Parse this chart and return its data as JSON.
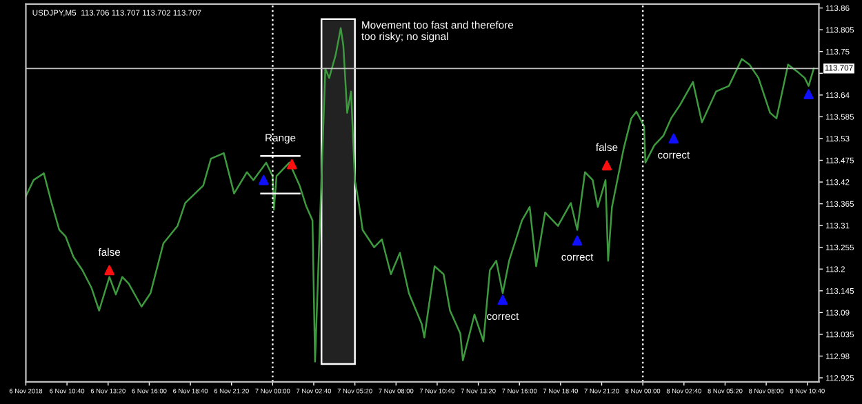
{
  "chart_data": {
    "type": "line",
    "title": "USDJPY,M5  113.706 113.707 113.702 113.707",
    "xlim": [
      "2018-11-06T08:00",
      "2018-11-08T11:25"
    ],
    "ylim": [
      112.915,
      113.87
    ],
    "xticks": [
      {
        "value": "2018-11-06T08:00",
        "label": "6 Nov 2018"
      },
      {
        "value": "2018-11-06T10:40",
        "label": "6 Nov 10:40"
      },
      {
        "value": "2018-11-06T13:20",
        "label": "6 Nov 13:20"
      },
      {
        "value": "2018-11-06T16:00",
        "label": "6 Nov 16:00"
      },
      {
        "value": "2018-11-06T18:40",
        "label": "6 Nov 18:40"
      },
      {
        "value": "2018-11-06T21:20",
        "label": "6 Nov 21:20"
      },
      {
        "value": "2018-11-07T00:00",
        "label": "7 Nov 00:00"
      },
      {
        "value": "2018-11-07T02:40",
        "label": "7 Nov 02:40"
      },
      {
        "value": "2018-11-07T05:20",
        "label": "7 Nov 05:20"
      },
      {
        "value": "2018-11-07T08:00",
        "label": "7 Nov 08:00"
      },
      {
        "value": "2018-11-07T10:40",
        "label": "7 Nov 10:40"
      },
      {
        "value": "2018-11-07T13:20",
        "label": "7 Nov 13:20"
      },
      {
        "value": "2018-11-07T16:00",
        "label": "7 Nov 16:00"
      },
      {
        "value": "2018-11-07T18:40",
        "label": "7 Nov 18:40"
      },
      {
        "value": "2018-11-07T21:20",
        "label": "7 Nov 21:20"
      },
      {
        "value": "2018-11-08T00:00",
        "label": "8 Nov 00:00"
      },
      {
        "value": "2018-11-08T02:40",
        "label": "8 Nov 02:40"
      },
      {
        "value": "2018-11-08T05:20",
        "label": "8 Nov 05:20"
      },
      {
        "value": "2018-11-08T08:00",
        "label": "8 Nov 08:00"
      },
      {
        "value": "2018-11-08T10:40",
        "label": "8 Nov 10:40"
      }
    ],
    "yticks": [
      112.925,
      112.98,
      113.035,
      113.09,
      113.145,
      113.2,
      113.255,
      113.31,
      113.365,
      113.42,
      113.475,
      113.53,
      113.585,
      113.64,
      {
        "value": 113.695,
        "label": null
      },
      113.75,
      113.805,
      113.86
    ],
    "grid": false,
    "legend": false,
    "series": [
      {
        "color": "#3e9a3e",
        "x": [
          "2018-11-06T08:00",
          "2018-11-06T08:30",
          "2018-11-06T09:10",
          "2018-11-06T09:40",
          "2018-11-06T10:10",
          "2018-11-06T10:35",
          "2018-11-06T11:05",
          "2018-11-06T11:40",
          "2018-11-06T12:15",
          "2018-11-06T12:45",
          "2018-11-06T13:25",
          "2018-11-06T13:50",
          "2018-11-06T14:15",
          "2018-11-06T14:40",
          "2018-11-06T15:30",
          "2018-11-06T16:05",
          "2018-11-06T16:55",
          "2018-11-06T17:50",
          "2018-11-06T18:20",
          "2018-11-06T19:30",
          "2018-11-06T20:00",
          "2018-11-06T20:50",
          "2018-11-06T21:30",
          "2018-11-06T22:20",
          "2018-11-06T22:45",
          "2018-11-06T23:35",
          "2018-11-07T00:00",
          "2018-11-07T00:05",
          "2018-11-07T00:15",
          "2018-11-07T01:05",
          "2018-11-07T01:45",
          "2018-11-07T02:10",
          "2018-11-07T02:35",
          "2018-11-07T02:45",
          "2018-11-07T03:25",
          "2018-11-07T03:40",
          "2018-11-07T04:05",
          "2018-11-07T04:25",
          "2018-11-07T04:35",
          "2018-11-07T04:50",
          "2018-11-07T05:05",
          "2018-11-07T05:20",
          "2018-11-07T05:35",
          "2018-11-07T05:50",
          "2018-11-07T06:35",
          "2018-11-07T07:05",
          "2018-11-07T07:40",
          "2018-11-07T08:15",
          "2018-11-07T08:50",
          "2018-11-07T09:40",
          "2018-11-07T09:50",
          "2018-11-07T10:30",
          "2018-11-07T11:05",
          "2018-11-07T11:30",
          "2018-11-07T12:10",
          "2018-11-07T12:20",
          "2018-11-07T13:05",
          "2018-11-07T13:40",
          "2018-11-07T14:05",
          "2018-11-07T14:30",
          "2018-11-07T14:55",
          "2018-11-07T15:20",
          "2018-11-07T16:10",
          "2018-11-07T16:40",
          "2018-11-07T17:05",
          "2018-11-07T17:40",
          "2018-11-07T18:30",
          "2018-11-07T19:20",
          "2018-11-07T19:45",
          "2018-11-07T20:15",
          "2018-11-07T20:45",
          "2018-11-07T21:05",
          "2018-11-07T21:35",
          "2018-11-07T21:45",
          "2018-11-07T22:00",
          "2018-11-07T22:45",
          "2018-11-07T23:15",
          "2018-11-07T23:35",
          "2018-11-08T00:05",
          "2018-11-08T00:10",
          "2018-11-08T00:45",
          "2018-11-08T01:20",
          "2018-11-08T01:50",
          "2018-11-08T02:25",
          "2018-11-08T03:15",
          "2018-11-08T03:50",
          "2018-11-08T04:45",
          "2018-11-08T05:35",
          "2018-11-08T06:25",
          "2018-11-08T06:55",
          "2018-11-08T07:30",
          "2018-11-08T08:15",
          "2018-11-08T08:40",
          "2018-11-08T09:25",
          "2018-11-08T10:05",
          "2018-11-08T10:30",
          "2018-11-08T10:45",
          "2018-11-08T11:05"
        ],
        "values": [
          113.384,
          113.425,
          113.442,
          113.367,
          113.299,
          113.282,
          113.231,
          113.197,
          113.153,
          113.095,
          113.18,
          113.136,
          113.18,
          113.163,
          113.105,
          113.139,
          113.265,
          113.309,
          113.367,
          113.411,
          113.479,
          113.493,
          113.391,
          113.445,
          113.425,
          113.469,
          113.435,
          113.35,
          113.435,
          113.469,
          113.411,
          113.36,
          113.323,
          112.966,
          113.707,
          113.683,
          113.741,
          113.809,
          113.765,
          113.595,
          113.649,
          113.425,
          113.367,
          113.299,
          113.255,
          113.275,
          113.187,
          113.241,
          113.139,
          113.061,
          113.027,
          113.207,
          113.187,
          113.095,
          113.037,
          112.969,
          113.085,
          113.017,
          113.197,
          113.221,
          113.139,
          113.221,
          113.323,
          113.357,
          113.207,
          113.343,
          113.309,
          113.367,
          113.299,
          113.445,
          113.425,
          113.357,
          113.425,
          113.221,
          113.357,
          113.503,
          113.581,
          113.598,
          113.561,
          113.469,
          113.513,
          113.537,
          113.581,
          113.615,
          113.673,
          113.571,
          113.649,
          113.663,
          113.731,
          113.717,
          113.683,
          113.595,
          113.581,
          113.717,
          113.697,
          113.683,
          113.663,
          113.707
        ]
      },
      {
        "type": "line",
        "color": "#ffffff",
        "x": [
          "2018-11-06T23:15",
          "2018-11-07T01:45"
        ],
        "values": [
          113.486,
          113.486
        ]
      },
      {
        "type": "line",
        "color": "#ffffff",
        "x": [
          "2018-11-06T23:15",
          "2018-11-07T01:45"
        ],
        "values": [
          113.391,
          113.391
        ]
      },
      {
        "type": "scatter",
        "color": "#1010ff",
        "marker": "triangle",
        "x": [
          "2018-11-06T23:25",
          "2018-11-07T14:55",
          "2018-11-07T19:45",
          "2018-11-08T02:00",
          "2018-11-08T10:45"
        ],
        "values": [
          113.425,
          113.122,
          113.272,
          113.53,
          113.642
        ]
      },
      {
        "type": "scatter",
        "color": "#ff1010",
        "marker": "triangle",
        "x": [
          "2018-11-06T13:25",
          "2018-11-07T01:15",
          "2018-11-07T21:40"
        ],
        "values": [
          113.197,
          113.465,
          113.462
        ]
      }
    ],
    "ref_lines": [
      {
        "axis": "y",
        "value": 113.707,
        "label": "113.707",
        "color": "#c0c0c0",
        "line_style": "solid"
      },
      {
        "axis": "x",
        "value": "2018-11-07T00:00",
        "color": "#ffffff",
        "line_style": "dotted"
      },
      {
        "axis": "x",
        "value": "2018-11-08T00:00",
        "color": "#ffffff",
        "line_style": "dotted"
      }
    ],
    "bands": [
      {
        "axis": "x",
        "from": "2018-11-07T03:10",
        "to": "2018-11-07T05:20",
        "color": "#ffffff"
      }
    ],
    "annotations": [
      "Movement too fast and therefore\ntoo risky; no signal",
      {
        "text": "false",
        "x": "2018-11-06T13:25",
        "y": 113.197
      },
      {
        "text": "Range",
        "x": "2018-11-07T00:30",
        "y": 113.486
      },
      {
        "text": "correct",
        "x": "2018-11-07T14:55",
        "y": 113.122
      },
      {
        "text": "correct",
        "x": "2018-11-07T19:45",
        "y": 113.272
      },
      {
        "text": "false",
        "x": "2018-11-07T21:40",
        "y": 113.462
      },
      {
        "text": "correct",
        "x": "2018-11-08T02:00",
        "y": 113.53
      }
    ]
  }
}
